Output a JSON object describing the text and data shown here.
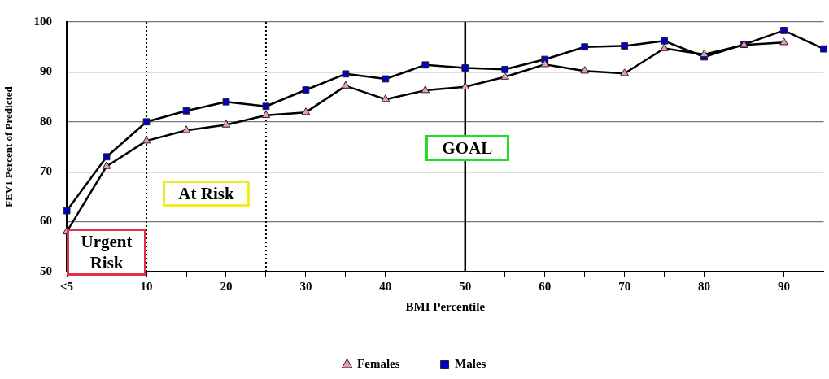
{
  "chart_data": {
    "type": "line",
    "xlabel": "BMI Percentile",
    "ylabel": "FEV1 Percent of Predicted",
    "x": [
      0,
      5,
      10,
      15,
      20,
      25,
      30,
      35,
      40,
      45,
      50,
      55,
      60,
      65,
      70,
      75,
      80,
      85,
      90,
      95
    ],
    "series": [
      {
        "name": "Males",
        "color": "#0000cc",
        "marker": "square",
        "values": [
          62.2,
          73,
          80,
          82.2,
          84,
          83.1,
          86.4,
          89.6,
          88.6,
          91.4,
          90.8,
          90.5,
          92.5,
          95,
          95.2,
          96.2,
          93,
          95.5,
          98.3,
          94.6
        ]
      },
      {
        "name": "Females",
        "color": "#ee99bb",
        "marker": "triangle",
        "values": [
          58,
          71.1,
          76.2,
          78.3,
          79.4,
          81.3,
          81.9,
          87.2,
          84.5,
          86.3,
          87,
          89,
          91.5,
          90.2,
          89.7,
          94.7,
          93.5,
          95.4,
          95.9,
          null
        ]
      }
    ],
    "xlim": [
      0,
      95
    ],
    "xticks": [
      {
        "value": 0,
        "label": "<5"
      },
      {
        "value": 5,
        "label": null
      },
      10,
      {
        "value": 15,
        "label": null
      },
      20,
      {
        "value": 25,
        "label": null
      },
      30,
      {
        "value": 35,
        "label": null
      },
      40,
      {
        "value": 45,
        "label": null
      },
      50,
      {
        "value": 55,
        "label": null
      },
      60,
      {
        "value": 65,
        "label": null
      },
      70,
      {
        "value": 75,
        "label": null
      },
      80,
      {
        "value": 85,
        "label": null
      },
      90
    ],
    "ylim": [
      50,
      100
    ],
    "yticks": [
      50,
      60,
      70,
      80,
      90,
      100
    ],
    "grid": "y",
    "legend": "bottom",
    "line_style": "solid",
    "ref_lines": [
      {
        "axis": "x",
        "value": 10,
        "line_style": "dotted"
      },
      {
        "axis": "x",
        "value": 25,
        "line_style": "dotted"
      },
      {
        "axis": "x",
        "value": 50,
        "line_style": "solid"
      }
    ],
    "annotations": [
      "Urgent Risk",
      "At Risk",
      "GOAL"
    ]
  }
}
